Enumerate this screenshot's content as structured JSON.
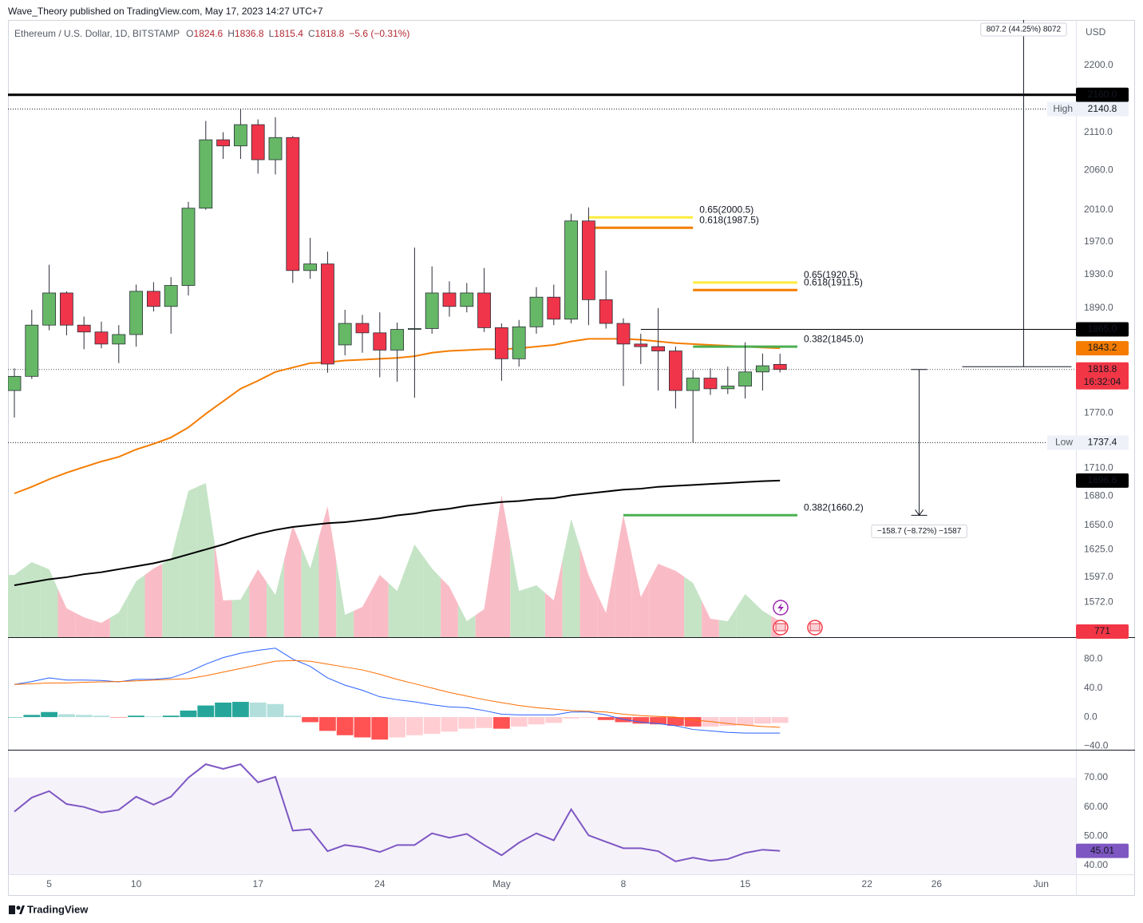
{
  "header": "Wave_Theory published on TradingView.com, May 17, 2023 14:27 UTC+7",
  "footer": "TradingView",
  "chart_data": {
    "type": "candlestick",
    "title": "Ethereum / U.S. Dollar, 1D, BITSTAMP",
    "ohlc_legend": [
      {
        "key": "O",
        "value": 1824.6
      },
      {
        "key": "H",
        "value": 1836.8
      },
      {
        "key": "L",
        "value": 1815.4
      },
      {
        "key": "C",
        "value": 1818.8
      }
    ],
    "change": "−5.6 (−0.31%)",
    "currency": "USD",
    "log_scale": true,
    "ylim": [
      1538.2,
      2263.6
    ],
    "yticks": [
      {
        "value": 2200,
        "label": "2200.0"
      },
      {
        "value": 2110,
        "label": "2110.0"
      },
      {
        "value": 2060,
        "label": "2060.0"
      },
      {
        "value": 2010,
        "label": "2010.0"
      },
      {
        "value": 1970,
        "label": "1970.0"
      },
      {
        "value": 1930,
        "label": "1930.0"
      },
      {
        "value": 1890,
        "label": "1890.0"
      },
      {
        "value": 1770,
        "label": "1770.0"
      },
      {
        "value": 1710,
        "label": "1710.0"
      },
      {
        "value": 1680,
        "label": "1680.0"
      },
      {
        "value": 1650,
        "label": "1650.0"
      },
      {
        "value": 1625,
        "label": "1625.0"
      },
      {
        "value": 1597,
        "label": "1597.0"
      },
      {
        "value": 1572,
        "label": "1572.0"
      }
    ],
    "xticks": [
      {
        "value": "2023-04-05",
        "label": "5"
      },
      {
        "value": "2023-04-10",
        "label": "10"
      },
      {
        "value": "2023-04-17",
        "label": "17"
      },
      {
        "value": "2023-04-24",
        "label": "24"
      },
      {
        "value": "2023-05-01",
        "label": "May"
      },
      {
        "value": "2023-05-08",
        "label": "8"
      },
      {
        "value": "2023-05-15",
        "label": "15"
      },
      {
        "value": "2023-05-22",
        "label": "22"
      },
      {
        "value": "2023-05-26",
        "label": "26"
      },
      {
        "value": "2023-06-01",
        "label": "Jun"
      }
    ],
    "up_color": "#66b866",
    "down_color": "#f0354a",
    "x": [
      "2023-04-03",
      "2023-04-04",
      "2023-04-05",
      "2023-04-06",
      "2023-04-07",
      "2023-04-08",
      "2023-04-09",
      "2023-04-10",
      "2023-04-11",
      "2023-04-12",
      "2023-04-13",
      "2023-04-14",
      "2023-04-15",
      "2023-04-16",
      "2023-04-17",
      "2023-04-18",
      "2023-04-19",
      "2023-04-20",
      "2023-04-21",
      "2023-04-22",
      "2023-04-23",
      "2023-04-24",
      "2023-04-25",
      "2023-04-26",
      "2023-04-27",
      "2023-04-28",
      "2023-04-29",
      "2023-04-30",
      "2023-05-01",
      "2023-05-02",
      "2023-05-03",
      "2023-05-04",
      "2023-05-05",
      "2023-05-06",
      "2023-05-07",
      "2023-05-08",
      "2023-05-09",
      "2023-05-10",
      "2023-05-11",
      "2023-05-12",
      "2023-05-13",
      "2023-05-14",
      "2023-05-15",
      "2023-05-16",
      "2023-05-17"
    ],
    "open": [
      1795,
      1811,
      1870,
      1908,
      1870,
      1862,
      1848,
      1859,
      1910,
      1892,
      1917,
      2012,
      2100,
      2092,
      2120,
      2074,
      2103,
      1935,
      1943,
      1847,
      1872,
      1861,
      1841,
      1865,
      1866,
      1908,
      1892,
      1908,
      1867,
      1831,
      1868,
      1903,
      1877,
      1996,
      1900,
      1872,
      1848,
      1845,
      1840,
      1795,
      1809,
      1797,
      1800,
      1816,
      1824.6
    ],
    "high": [
      1820,
      1888,
      1942,
      1910,
      1880,
      1874,
      1870,
      1918,
      1921,
      1927,
      2020,
      2125,
      2110,
      2140.8,
      2127,
      2130,
      2105,
      1975,
      1958,
      1888,
      1882,
      1885,
      1873,
      1963,
      1940,
      1922,
      1920,
      1938,
      1872,
      1876,
      1915,
      1918,
      2005,
      2013,
      1935,
      1878,
      1860,
      1890,
      1845,
      1818,
      1820,
      1822,
      1850,
      1837,
      1836.8
    ],
    "low": [
      1765,
      1808,
      1864,
      1858,
      1842,
      1843,
      1826,
      1845,
      1886,
      1860,
      1905,
      2010,
      2075,
      2075,
      2056,
      2055,
      1920,
      1925,
      1815,
      1835,
      1838,
      1810,
      1805,
      1787,
      1860,
      1880,
      1885,
      1862,
      1806,
      1822,
      1860,
      1870,
      1872,
      1870,
      1866,
      1800,
      1825,
      1795,
      1775,
      1737.4,
      1790,
      1791,
      1786,
      1795,
      1815.4
    ],
    "close": [
      1811,
      1870,
      1908,
      1870,
      1862,
      1848,
      1859,
      1910,
      1892,
      1917,
      2012,
      2100,
      2092,
      2120,
      2074,
      2103,
      1935,
      1943,
      1825,
      1872,
      1861,
      1841,
      1865,
      1866,
      1908,
      1892,
      1908,
      1867,
      1831,
      1868,
      1903,
      1877,
      1996,
      1900,
      1872,
      1848,
      1845,
      1840,
      1795,
      1809,
      1797,
      1800,
      1816,
      1823,
      1818.8
    ],
    "countdown": "16:32:04",
    "volume": {
      "colors": [
        "#c5e4c6",
        "#f9bcc6"
      ],
      "values": [
        3000,
        3620,
        3270,
        1390,
        960,
        690,
        1190,
        2700,
        3310,
        3770,
        7050,
        7430,
        1770,
        1810,
        3270,
        2040,
        5390,
        3310,
        6310,
        1080,
        1460,
        3000,
        2230,
        4470,
        3310,
        2430,
        770,
        1350,
        6850,
        2230,
        2500,
        1770,
        5700,
        3000,
        1160,
        5890,
        1930,
        3540,
        3200,
        2620,
        890,
        770,
        2080,
        1270,
        771
      ]
    },
    "overlays": [
      {
        "color": "#f57c00",
        "label_color": "#f57c00",
        "values": [
          1683,
          1690,
          1698,
          1705,
          1711,
          1717,
          1722,
          1730,
          1736,
          1743,
          1754,
          1769,
          1783,
          1797,
          1806,
          1816,
          1821,
          1826,
          1827,
          1829,
          1830,
          1831,
          1832,
          1834,
          1838,
          1840,
          1841,
          1842,
          1842,
          1843,
          1845,
          1847,
          1851,
          1854,
          1854,
          1854,
          1853,
          1851,
          1849,
          1848,
          1847,
          1846,
          1845,
          1844,
          1843.2
        ]
      },
      {
        "color": "#000000",
        "label_color": "#000000",
        "values": [
          1589,
          1592,
          1595,
          1597,
          1600,
          1602,
          1605,
          1608,
          1611,
          1615,
          1620,
          1625,
          1630,
          1636,
          1641,
          1645,
          1648,
          1650,
          1652,
          1653,
          1655,
          1657,
          1660,
          1662,
          1665,
          1667,
          1670,
          1672,
          1674,
          1675,
          1677,
          1678,
          1681,
          1683,
          1685,
          1687,
          1688,
          1690,
          1691,
          1692,
          1693,
          1694,
          1695,
          1696,
          1696.6
        ]
      }
    ],
    "levels": [
      {
        "value": 2160,
        "label": "2160.0",
        "color": "#000000",
        "width": 3
      },
      {
        "value": 1865,
        "label": "1865.0",
        "color": "#000000",
        "width": 1,
        "start": "2023-05-09"
      }
    ],
    "extremes": [
      {
        "name": "High",
        "value": 2140.8
      },
      {
        "name": "Low",
        "value": 1737.4
      }
    ],
    "fib_lines": [
      {
        "value": 2000.5,
        "label": "0.65(2000.5)",
        "color": "#ffeb3b",
        "text_color": "#f2c230",
        "start": "2023-05-06",
        "end": "2023-05-12"
      },
      {
        "value": 1987.5,
        "label": "0.618(1987.5)",
        "color": "#f57c00",
        "text_color": "#f57c00",
        "start": "2023-05-06",
        "end": "2023-05-12"
      },
      {
        "value": 1920.5,
        "label": "0.65(1920.5)",
        "color": "#ffeb3b",
        "text_color": "#f2c230",
        "start": "2023-05-12",
        "end": "2023-05-18"
      },
      {
        "value": 1911.5,
        "label": "0.618(1911.5)",
        "color": "#f57c00",
        "text_color": "#f57c00",
        "start": "2023-05-12",
        "end": "2023-05-18"
      },
      {
        "value": 1845.0,
        "label": "0.382(1845.0)",
        "color": "#4caf50",
        "text_color": "#4caf50",
        "start": "2023-05-12",
        "end": "2023-05-18"
      },
      {
        "value": 1660.2,
        "label": "0.382(1660.2)",
        "color": "#4caf50",
        "text_color": "#4caf50",
        "start": "2023-05-08",
        "end": "2023-05-18"
      }
    ],
    "measures": [
      {
        "date": "2023-05-31",
        "from": 1822,
        "to": 2629.2,
        "label": "807.2 (44.25%) 8072"
      },
      {
        "date": "2023-05-25",
        "from": 1818.8,
        "to": 1660.1,
        "label": "−158.7 (−8.72%) −1587"
      }
    ],
    "macd": {
      "ylim": [
        -45,
        108
      ],
      "yticks": [
        {
          "value": 80,
          "label": "80.0"
        },
        {
          "value": 40,
          "label": "40.0"
        },
        {
          "value": 0,
          "label": "0.0"
        },
        {
          "value": -40,
          "label": "−40.0"
        }
      ],
      "histogram": {
        "colors": [
          "#26a69a",
          "#b2dfdb",
          "#ffcdd2",
          "#ff5252"
        ],
        "values": [
          0,
          3,
          7,
          4,
          3,
          2,
          -0.5,
          2,
          1,
          2,
          9,
          16,
          20,
          21,
          20,
          18,
          2,
          -7,
          -19,
          -25,
          -28,
          -31,
          -28,
          -25,
          -23,
          -20,
          -16,
          -15,
          -16,
          -13,
          -10,
          -8,
          -2,
          -1,
          -4,
          -7,
          -9,
          -10,
          -12,
          -13,
          -13,
          -12,
          -11,
          -9,
          -8
        ]
      },
      "macd": {
        "color": "#2962ff",
        "values": [
          45,
          49,
          54,
          51,
          51,
          50.5,
          48.5,
          52,
          52,
          54,
          62,
          73,
          82,
          88,
          92,
          95,
          80,
          70,
          54,
          44,
          37,
          28,
          24,
          21,
          17,
          14,
          13,
          9,
          4,
          3,
          3,
          3,
          7,
          7,
          3,
          -3,
          -7,
          -9,
          -12,
          -17,
          -19,
          -21,
          -22,
          -22,
          -22
        ]
      },
      "signal": {
        "color": "#ff6d00",
        "values": [
          45,
          46,
          47,
          47,
          48,
          48.5,
          49,
          50,
          51,
          52,
          53,
          57,
          62,
          67,
          72,
          77,
          78,
          77,
          73,
          69,
          65,
          59,
          52,
          46,
          40,
          34,
          29,
          24,
          20,
          16,
          13,
          11,
          9,
          8,
          7,
          4,
          2,
          1,
          0,
          -4,
          -6,
          -9,
          -11,
          -13,
          -14
        ]
      }
    },
    "rsi": {
      "ylim": [
        37,
        79
      ],
      "yticks": [
        {
          "value": 70,
          "label": "70.00"
        },
        {
          "value": 60,
          "label": "60.00"
        },
        {
          "value": 50,
          "label": "50.00"
        },
        {
          "value": 40,
          "label": "40.00"
        }
      ],
      "band": [
        30,
        70
      ],
      "color": "#7e57c2",
      "values": [
        58.4,
        63.2,
        65.4,
        61,
        60,
        58.1,
        59,
        63.5,
        60.8,
        63.5,
        70,
        74.6,
        73,
        74.6,
        68.4,
        70.3,
        51.9,
        52.4,
        44.9,
        47,
        46.2,
        44.6,
        47,
        47,
        51,
        49.5,
        50.8,
        47,
        43.5,
        47.8,
        51,
        48.6,
        59.2,
        50.3,
        48.1,
        45.9,
        45.9,
        44.9,
        41.4,
        42.7,
        41.6,
        42.2,
        44.3,
        45.4,
        45.01
      ]
    }
  }
}
